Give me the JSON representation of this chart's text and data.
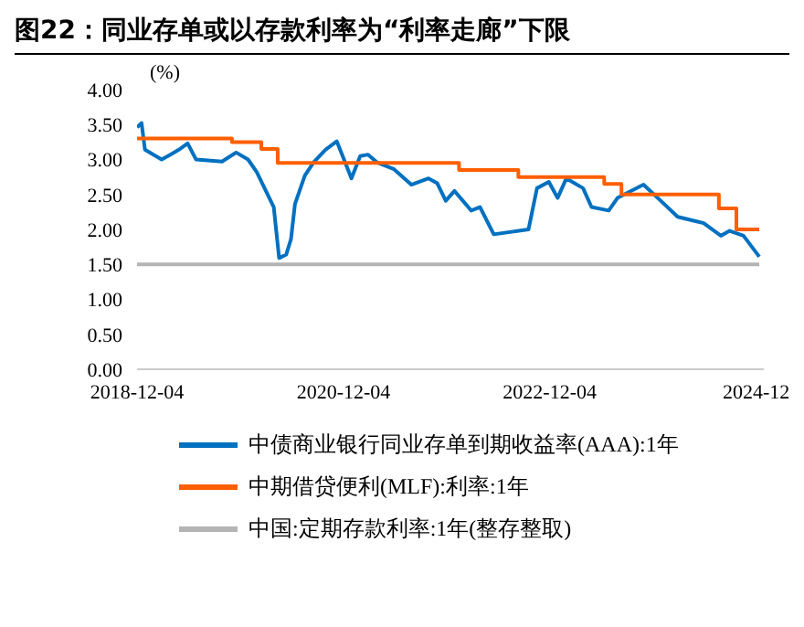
{
  "chart_data": {
    "type": "line",
    "title": "图22：同业存单或以存款利率为“利率走廊”下限",
    "ylabel": "(%)",
    "xlim": [
      "2018-12-04",
      "2024-12-31"
    ],
    "xticks": [
      {
        "value": "2018-12-04",
        "label": "2018-12-04"
      },
      {
        "value": "2020-12-04",
        "label": "2020-12-04"
      },
      {
        "value": "2022-12-04",
        "label": "2022-12-04"
      },
      {
        "value": "2024-12-04",
        "label": "2024-12"
      }
    ],
    "ylim": [
      0,
      4
    ],
    "yticks": [
      {
        "value": 0,
        "label": "0.00"
      },
      {
        "value": 0.5,
        "label": "0.50"
      },
      {
        "value": 1,
        "label": "1.00"
      },
      {
        "value": 1.5,
        "label": "1.50"
      },
      {
        "value": 2,
        "label": "2.00"
      },
      {
        "value": 2.5,
        "label": "2.50"
      },
      {
        "value": 3,
        "label": "3.00"
      },
      {
        "value": 3.5,
        "label": "3.50"
      },
      {
        "value": 4,
        "label": "4.00"
      }
    ],
    "grid": false,
    "legend": "bottom",
    "marker": "none",
    "line_style": "solid",
    "series": [
      {
        "name": "中债商业银行同业存单到期收益率(AAA):1年",
        "color": "#0070c0",
        "x": [
          "2018-12-04",
          "2018-12-20",
          "2019-01-01",
          "2019-03-01",
          "2019-04-01",
          "2019-05-01",
          "2019-06-01",
          "2019-07-01",
          "2019-10-01",
          "2019-11-20",
          "2020-01-01",
          "2020-02-01",
          "2020-04-01",
          "2020-04-20",
          "2020-05-15",
          "2020-06-01",
          "2020-06-15",
          "2020-07-20",
          "2020-08-20",
          "2020-10-01",
          "2020-11-10",
          "2020-12-01",
          "2021-01-01",
          "2021-02-01",
          "2021-03-01",
          "2021-04-01",
          "2021-06-01",
          "2021-08-01",
          "2021-10-01",
          "2021-11-01",
          "2021-12-01",
          "2022-01-01",
          "2022-03-01",
          "2022-04-01",
          "2022-05-20",
          "2022-09-20",
          "2022-10-20",
          "2022-12-01",
          "2023-01-01",
          "2023-02-01",
          "2023-04-01",
          "2023-05-01",
          "2023-07-01",
          "2023-08-01",
          "2023-11-01",
          "2024-01-01",
          "2024-03-01",
          "2024-06-01",
          "2024-08-01",
          "2024-09-01",
          "2024-10-20",
          "2024-12-15"
        ],
        "values": [
          3.46,
          3.52,
          3.14,
          3.0,
          3.07,
          3.14,
          3.23,
          3.0,
          2.97,
          3.1,
          3.0,
          2.82,
          2.32,
          1.59,
          1.64,
          1.86,
          2.36,
          2.77,
          2.96,
          3.14,
          3.26,
          3.05,
          2.73,
          3.05,
          3.07,
          2.96,
          2.86,
          2.64,
          2.73,
          2.66,
          2.41,
          2.55,
          2.27,
          2.32,
          1.93,
          2.0,
          2.59,
          2.68,
          2.45,
          2.73,
          2.59,
          2.32,
          2.27,
          2.45,
          2.64,
          2.41,
          2.18,
          2.09,
          1.91,
          1.98,
          1.91,
          1.61
        ]
      },
      {
        "name": "中期借贷便利(MLF):利率:1年",
        "color": "#ff5f00",
        "type": "step",
        "x": [
          "2018-12-04",
          "2019-11-05",
          "2020-02-17",
          "2020-04-15",
          "2022-01-17",
          "2022-08-15",
          "2023-06-15",
          "2023-08-15",
          "2024-07-25",
          "2024-09-25",
          "2024-12-15"
        ],
        "values": [
          3.3,
          3.25,
          3.15,
          2.95,
          2.85,
          2.75,
          2.65,
          2.5,
          2.3,
          2.0,
          2.0
        ]
      },
      {
        "name": "中国:定期存款利率:1年(整存整取)",
        "color": "#b4b4b4",
        "x": [
          "2018-12-04",
          "2024-12-15"
        ],
        "values": [
          1.5,
          1.5
        ]
      }
    ]
  }
}
